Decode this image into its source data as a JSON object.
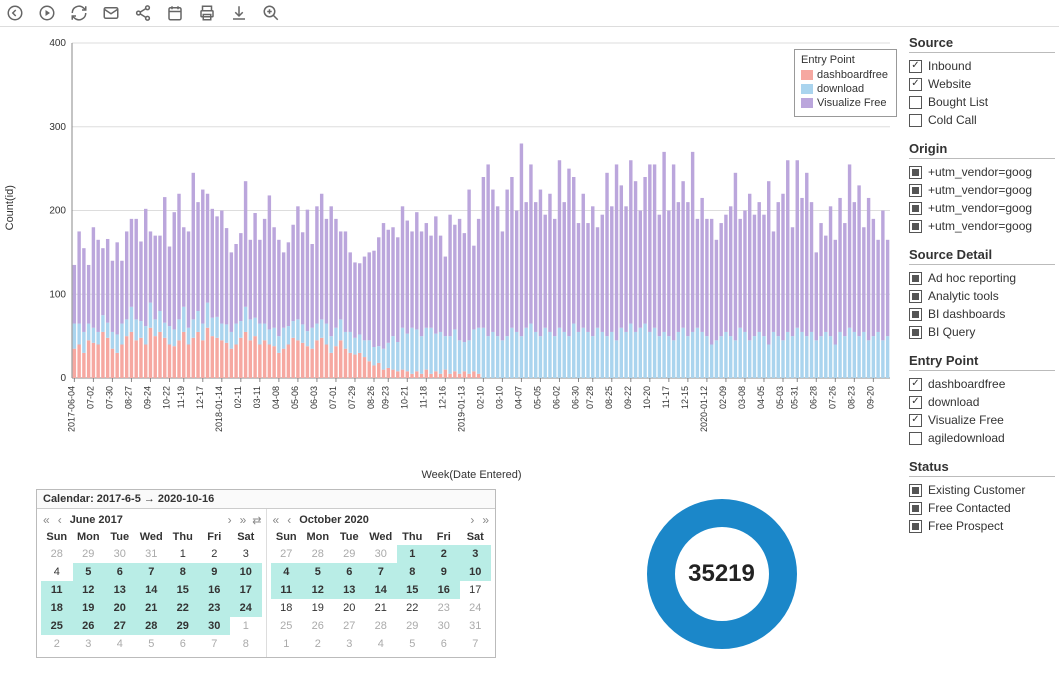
{
  "toolbar": {
    "icons": [
      "back",
      "play",
      "refresh",
      "mail",
      "share",
      "calendar",
      "print",
      "download",
      "zoom"
    ]
  },
  "chart": {
    "type": "stacked-bar",
    "y_label": "Count(id)",
    "x_label": "Week(Date Entered)",
    "ylim": [
      0,
      400
    ],
    "ytick_step": 100,
    "background_color": "#ffffff",
    "grid_color": "#dddddd",
    "legend_title": "Entry Point",
    "series": [
      {
        "name": "dashboardfree",
        "color": "#f6a8a1"
      },
      {
        "name": "download",
        "color": "#aad4ee"
      },
      {
        "name": "Visualize Free",
        "color": "#bba6dc"
      }
    ],
    "x_ticks": [
      "2017-06-04",
      "07-02",
      "07-30",
      "08-27",
      "09-24",
      "10-22",
      "11-19",
      "12-17",
      "2018-01-14",
      "02-11",
      "03-11",
      "04-08",
      "05-06",
      "06-03",
      "07-01",
      "07-29",
      "08-26",
      "09-23",
      "10-21",
      "11-18",
      "12-16",
      "2019-01-13",
      "02-10",
      "03-10",
      "04-07",
      "05-05",
      "06-02",
      "06-30",
      "07-28",
      "08-25",
      "09-22",
      "10-20",
      "11-17",
      "12-15",
      "2020-01-12",
      "02-09",
      "03-08",
      "04-05",
      "05-03",
      "05-31",
      "06-28",
      "07-26",
      "08-23",
      "09-20"
    ],
    "weeks": [
      [
        35,
        30,
        70
      ],
      [
        40,
        25,
        110
      ],
      [
        30,
        25,
        100
      ],
      [
        45,
        20,
        70
      ],
      [
        42,
        18,
        120
      ],
      [
        40,
        15,
        110
      ],
      [
        55,
        20,
        80
      ],
      [
        48,
        18,
        100
      ],
      [
        35,
        20,
        85
      ],
      [
        30,
        22,
        110
      ],
      [
        40,
        25,
        75
      ],
      [
        50,
        20,
        105
      ],
      [
        55,
        30,
        105
      ],
      [
        45,
        25,
        120
      ],
      [
        48,
        20,
        95
      ],
      [
        40,
        22,
        140
      ],
      [
        60,
        30,
        85
      ],
      [
        50,
        20,
        100
      ],
      [
        55,
        25,
        90
      ],
      [
        48,
        18,
        150
      ],
      [
        40,
        22,
        95
      ],
      [
        38,
        20,
        140
      ],
      [
        45,
        25,
        150
      ],
      [
        55,
        30,
        95
      ],
      [
        40,
        20,
        115
      ],
      [
        48,
        22,
        175
      ],
      [
        55,
        25,
        130
      ],
      [
        45,
        20,
        160
      ],
      [
        60,
        30,
        130
      ],
      [
        50,
        22,
        130
      ],
      [
        48,
        25,
        120
      ],
      [
        45,
        20,
        135
      ],
      [
        42,
        22,
        115
      ],
      [
        35,
        20,
        95
      ],
      [
        40,
        25,
        95
      ],
      [
        48,
        20,
        105
      ],
      [
        55,
        30,
        150
      ],
      [
        45,
        25,
        95
      ],
      [
        50,
        22,
        125
      ],
      [
        40,
        25,
        100
      ],
      [
        45,
        20,
        125
      ],
      [
        40,
        18,
        160
      ],
      [
        38,
        22,
        120
      ],
      [
        30,
        20,
        115
      ],
      [
        35,
        25,
        90
      ],
      [
        40,
        22,
        100
      ],
      [
        48,
        20,
        115
      ],
      [
        45,
        25,
        135
      ],
      [
        42,
        22,
        110
      ],
      [
        38,
        18,
        145
      ],
      [
        35,
        25,
        100
      ],
      [
        45,
        20,
        140
      ],
      [
        48,
        22,
        150
      ],
      [
        40,
        25,
        125
      ],
      [
        30,
        20,
        155
      ],
      [
        38,
        22,
        130
      ],
      [
        45,
        25,
        105
      ],
      [
        35,
        20,
        120
      ],
      [
        30,
        25,
        95
      ],
      [
        28,
        20,
        90
      ],
      [
        30,
        22,
        85
      ],
      [
        25,
        20,
        100
      ],
      [
        20,
        25,
        105
      ],
      [
        15,
        22,
        115
      ],
      [
        18,
        20,
        130
      ],
      [
        10,
        25,
        150
      ],
      [
        12,
        30,
        135
      ],
      [
        10,
        40,
        130
      ],
      [
        8,
        35,
        125
      ],
      [
        10,
        50,
        145
      ],
      [
        8,
        45,
        135
      ],
      [
        5,
        55,
        115
      ],
      [
        8,
        50,
        140
      ],
      [
        5,
        45,
        125
      ],
      [
        10,
        50,
        125
      ],
      [
        5,
        55,
        110
      ],
      [
        8,
        45,
        140
      ],
      [
        5,
        50,
        115
      ],
      [
        10,
        40,
        95
      ],
      [
        5,
        45,
        145
      ],
      [
        8,
        50,
        125
      ],
      [
        5,
        40,
        145
      ],
      [
        8,
        35,
        130
      ],
      [
        5,
        40,
        180
      ],
      [
        8,
        50,
        100
      ],
      [
        5,
        55,
        130
      ],
      [
        0,
        60,
        180
      ],
      [
        0,
        50,
        205
      ],
      [
        0,
        55,
        170
      ],
      [
        0,
        50,
        155
      ],
      [
        0,
        45,
        130
      ],
      [
        0,
        50,
        175
      ],
      [
        0,
        60,
        180
      ],
      [
        0,
        55,
        145
      ],
      [
        0,
        50,
        230
      ],
      [
        0,
        60,
        150
      ],
      [
        0,
        65,
        190
      ],
      [
        0,
        55,
        155
      ],
      [
        0,
        50,
        175
      ],
      [
        0,
        60,
        135
      ],
      [
        0,
        55,
        165
      ],
      [
        0,
        50,
        140
      ],
      [
        0,
        60,
        200
      ],
      [
        0,
        55,
        155
      ],
      [
        0,
        50,
        200
      ],
      [
        0,
        65,
        175
      ],
      [
        0,
        55,
        130
      ],
      [
        0,
        60,
        160
      ],
      [
        0,
        55,
        130
      ],
      [
        0,
        50,
        155
      ],
      [
        0,
        60,
        120
      ],
      [
        0,
        55,
        140
      ],
      [
        0,
        50,
        195
      ],
      [
        0,
        55,
        150
      ],
      [
        0,
        45,
        210
      ],
      [
        0,
        60,
        170
      ],
      [
        0,
        55,
        150
      ],
      [
        0,
        65,
        195
      ],
      [
        0,
        55,
        180
      ],
      [
        0,
        60,
        140
      ],
      [
        0,
        65,
        175
      ],
      [
        0,
        55,
        200
      ],
      [
        0,
        60,
        195
      ],
      [
        0,
        50,
        145
      ],
      [
        0,
        55,
        215
      ],
      [
        0,
        50,
        150
      ],
      [
        0,
        45,
        210
      ],
      [
        0,
        55,
        155
      ],
      [
        0,
        60,
        175
      ],
      [
        0,
        50,
        160
      ],
      [
        0,
        55,
        215
      ],
      [
        0,
        60,
        130
      ],
      [
        0,
        55,
        160
      ],
      [
        0,
        50,
        140
      ],
      [
        0,
        40,
        150
      ],
      [
        0,
        45,
        120
      ],
      [
        0,
        50,
        135
      ],
      [
        0,
        55,
        140
      ],
      [
        0,
        50,
        155
      ],
      [
        0,
        45,
        200
      ],
      [
        0,
        60,
        130
      ],
      [
        0,
        55,
        145
      ],
      [
        0,
        45,
        175
      ],
      [
        0,
        50,
        145
      ],
      [
        0,
        55,
        155
      ],
      [
        0,
        50,
        145
      ],
      [
        0,
        40,
        195
      ],
      [
        0,
        55,
        120
      ],
      [
        0,
        50,
        160
      ],
      [
        0,
        45,
        175
      ],
      [
        0,
        55,
        205
      ],
      [
        0,
        50,
        130
      ],
      [
        0,
        60,
        200
      ],
      [
        0,
        55,
        160
      ],
      [
        0,
        50,
        195
      ],
      [
        0,
        55,
        155
      ],
      [
        0,
        45,
        105
      ],
      [
        0,
        50,
        135
      ],
      [
        0,
        55,
        115
      ],
      [
        0,
        50,
        155
      ],
      [
        0,
        40,
        125
      ],
      [
        0,
        55,
        160
      ],
      [
        0,
        50,
        135
      ],
      [
        0,
        60,
        195
      ],
      [
        0,
        55,
        155
      ],
      [
        0,
        50,
        180
      ],
      [
        0,
        55,
        125
      ],
      [
        0,
        45,
        170
      ],
      [
        0,
        50,
        140
      ],
      [
        0,
        55,
        110
      ],
      [
        0,
        45,
        155
      ],
      [
        0,
        50,
        115
      ]
    ]
  },
  "calendar": {
    "title": "Calendar: 2017-6-5 → 2020-10-16",
    "day_headers": [
      "Sun",
      "Mon",
      "Tue",
      "Wed",
      "Thu",
      "Fri",
      "Sat"
    ],
    "left": {
      "name": "June 2017",
      "rows": [
        [
          {
            "d": 28,
            "m": 1
          },
          {
            "d": 29,
            "m": 1
          },
          {
            "d": 30,
            "m": 1
          },
          {
            "d": 31,
            "m": 1
          },
          {
            "d": 1
          },
          {
            "d": 2
          },
          {
            "d": 3
          }
        ],
        [
          {
            "d": 4
          },
          {
            "d": 5,
            "s": 1
          },
          {
            "d": 6,
            "s": 1
          },
          {
            "d": 7,
            "s": 1
          },
          {
            "d": 8,
            "s": 1
          },
          {
            "d": 9,
            "s": 1
          },
          {
            "d": 10,
            "s": 1
          }
        ],
        [
          {
            "d": 11,
            "s": 1
          },
          {
            "d": 12,
            "s": 1
          },
          {
            "d": 13,
            "s": 1
          },
          {
            "d": 14,
            "s": 1
          },
          {
            "d": 15,
            "s": 1
          },
          {
            "d": 16,
            "s": 1
          },
          {
            "d": 17,
            "s": 1
          }
        ],
        [
          {
            "d": 18,
            "s": 1
          },
          {
            "d": 19,
            "s": 1
          },
          {
            "d": 20,
            "s": 1
          },
          {
            "d": 21,
            "s": 1
          },
          {
            "d": 22,
            "s": 1
          },
          {
            "d": 23,
            "s": 1
          },
          {
            "d": 24,
            "s": 1
          }
        ],
        [
          {
            "d": 25,
            "s": 1
          },
          {
            "d": 26,
            "s": 1
          },
          {
            "d": 27,
            "s": 1
          },
          {
            "d": 28,
            "s": 1
          },
          {
            "d": 29,
            "s": 1
          },
          {
            "d": 30,
            "s": 1
          },
          {
            "d": 1,
            "m": 1
          }
        ],
        [
          {
            "d": 2,
            "m": 1
          },
          {
            "d": 3,
            "m": 1
          },
          {
            "d": 4,
            "m": 1
          },
          {
            "d": 5,
            "m": 1
          },
          {
            "d": 6,
            "m": 1
          },
          {
            "d": 7,
            "m": 1
          },
          {
            "d": 8,
            "m": 1
          }
        ]
      ]
    },
    "right": {
      "name": "October 2020",
      "rows": [
        [
          {
            "d": 27,
            "m": 1
          },
          {
            "d": 28,
            "m": 1
          },
          {
            "d": 29,
            "m": 1
          },
          {
            "d": 30,
            "m": 1
          },
          {
            "d": 1,
            "s": 1
          },
          {
            "d": 2,
            "s": 1
          },
          {
            "d": 3,
            "s": 1
          }
        ],
        [
          {
            "d": 4,
            "s": 1
          },
          {
            "d": 5,
            "s": 1
          },
          {
            "d": 6,
            "s": 1
          },
          {
            "d": 7,
            "s": 1
          },
          {
            "d": 8,
            "s": 1
          },
          {
            "d": 9,
            "s": 1
          },
          {
            "d": 10,
            "s": 1
          }
        ],
        [
          {
            "d": 11,
            "s": 1
          },
          {
            "d": 12,
            "s": 1
          },
          {
            "d": 13,
            "s": 1
          },
          {
            "d": 14,
            "s": 1
          },
          {
            "d": 15,
            "s": 1
          },
          {
            "d": 16,
            "s": 1
          },
          {
            "d": 17
          }
        ],
        [
          {
            "d": 18
          },
          {
            "d": 19
          },
          {
            "d": 20
          },
          {
            "d": 21
          },
          {
            "d": 22
          },
          {
            "d": 23,
            "m": 1
          },
          {
            "d": 24,
            "m": 1
          }
        ],
        [
          {
            "d": 25,
            "m": 1
          },
          {
            "d": 26,
            "m": 1
          },
          {
            "d": 27,
            "m": 1
          },
          {
            "d": 28,
            "m": 1
          },
          {
            "d": 29,
            "m": 1
          },
          {
            "d": 30,
            "m": 1
          },
          {
            "d": 31,
            "m": 1
          }
        ],
        [
          {
            "d": 1,
            "m": 1
          },
          {
            "d": 2,
            "m": 1
          },
          {
            "d": 3,
            "m": 1
          },
          {
            "d": 4,
            "m": 1
          },
          {
            "d": 5,
            "m": 1
          },
          {
            "d": 6,
            "m": 1
          },
          {
            "d": 7,
            "m": 1
          }
        ]
      ]
    }
  },
  "donut": {
    "value": "35219",
    "color": "#1b87c9"
  },
  "filters": {
    "source": {
      "title": "Source",
      "items": [
        {
          "label": "Inbound",
          "state": "on"
        },
        {
          "label": "Website",
          "state": "on"
        },
        {
          "label": "Bought List",
          "state": "off"
        },
        {
          "label": "Cold Call",
          "state": "off"
        }
      ]
    },
    "origin": {
      "title": "Origin",
      "items": [
        {
          "label": "+utm_vendor=goog",
          "state": "sq"
        },
        {
          "label": "+utm_vendor=goog",
          "state": "sq"
        },
        {
          "label": "+utm_vendor=goog",
          "state": "sq"
        },
        {
          "label": "+utm_vendor=goog",
          "state": "sq"
        }
      ]
    },
    "source_detail": {
      "title": "Source Detail",
      "items": [
        {
          "label": "Ad hoc reporting",
          "state": "sq"
        },
        {
          "label": "Analytic tools",
          "state": "sq"
        },
        {
          "label": "BI dashboards",
          "state": "sq"
        },
        {
          "label": "BI Query",
          "state": "sq"
        }
      ]
    },
    "entry_point": {
      "title": "Entry Point",
      "items": [
        {
          "label": "dashboardfree",
          "state": "on"
        },
        {
          "label": "download",
          "state": "on"
        },
        {
          "label": "Visualize Free",
          "state": "on"
        },
        {
          "label": "agiledownload",
          "state": "off"
        }
      ]
    },
    "status": {
      "title": "Status",
      "items": [
        {
          "label": "Existing Customer",
          "state": "sq"
        },
        {
          "label": "Free Contacted",
          "state": "sq"
        },
        {
          "label": "Free Prospect",
          "state": "sq"
        }
      ]
    }
  }
}
